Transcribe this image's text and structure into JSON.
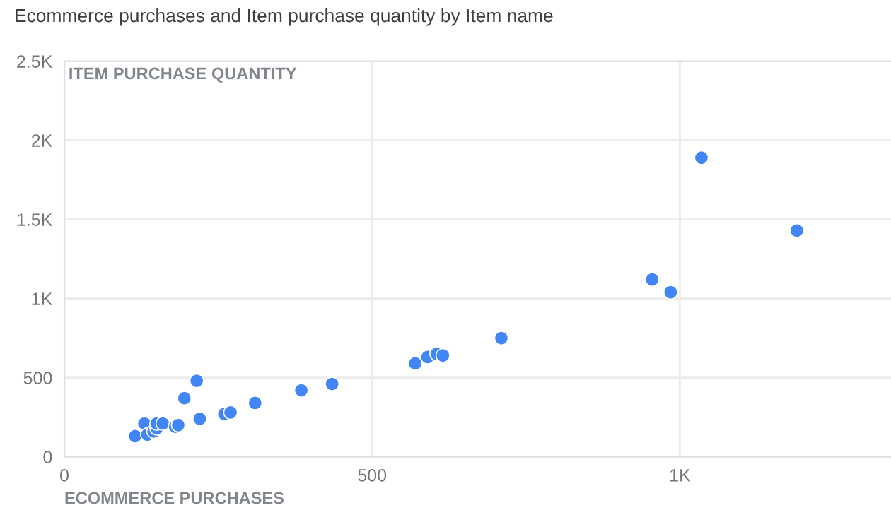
{
  "chart_data": {
    "type": "scatter",
    "title": "Ecommerce purchases and Item purchase quantity by Item name",
    "xlabel": "ECOMMERCE PURCHASES",
    "ylabel": "ITEM PURCHASE QUANTITY",
    "x": [
      115,
      130,
      135,
      145,
      150,
      150,
      160,
      180,
      185,
      195,
      215,
      220,
      260,
      270,
      310,
      385,
      435,
      570,
      590,
      605,
      615,
      710,
      955,
      985,
      1035,
      1190
    ],
    "series": [
      {
        "color": "#4285f4",
        "values": [
          130,
          210,
          140,
          160,
          180,
          210,
          210,
          190,
          200,
          370,
          480,
          240,
          270,
          280,
          340,
          420,
          460,
          590,
          630,
          650,
          640,
          750,
          1120,
          1040,
          1890,
          1430
        ]
      }
    ],
    "xlim": [
      0,
      1343
    ],
    "ylim": [
      0,
      2500
    ],
    "xticks": [
      0,
      500,
      {
        "value": 1000,
        "label": "1K"
      }
    ],
    "yticks": [
      0,
      500,
      {
        "value": 1000,
        "label": "1K"
      },
      {
        "value": 1500,
        "label": "1.5K"
      },
      {
        "value": 2000,
        "label": "2K"
      },
      {
        "value": 2500,
        "label": "2.5K"
      }
    ],
    "grid": true,
    "marker": "circle"
  }
}
